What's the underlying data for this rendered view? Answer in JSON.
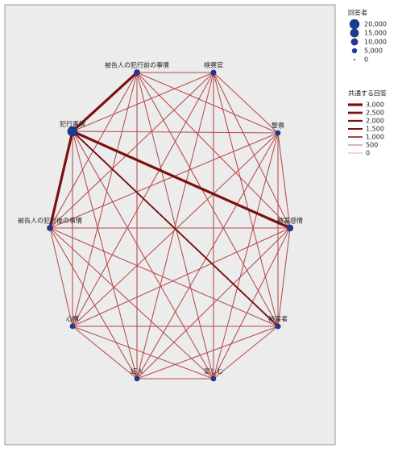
{
  "nodes": [
    {
      "label": "被告人の犯行前の事情",
      "value": 4000
    },
    {
      "label": "検察官",
      "value": 3000
    },
    {
      "label": "警察",
      "value": 2500
    },
    {
      "label": "被害感情",
      "value": 5000
    },
    {
      "label": "被害者",
      "value": 3000
    },
    {
      "label": "悲しむ",
      "value": 2500
    },
    {
      "label": "証人",
      "value": 2500
    },
    {
      "label": "心情",
      "value": 2500
    },
    {
      "label": "被告人の犯行後の事情",
      "value": 4000
    },
    {
      "label": "犯行事情",
      "value": 15000
    }
  ],
  "edges": [
    [
      0,
      1,
      500
    ],
    [
      0,
      2,
      500
    ],
    [
      0,
      3,
      500
    ],
    [
      0,
      4,
      500
    ],
    [
      0,
      5,
      500
    ],
    [
      0,
      6,
      500
    ],
    [
      0,
      7,
      500
    ],
    [
      0,
      8,
      500
    ],
    [
      0,
      9,
      3000
    ],
    [
      1,
      2,
      500
    ],
    [
      1,
      3,
      500
    ],
    [
      1,
      4,
      500
    ],
    [
      1,
      5,
      500
    ],
    [
      1,
      6,
      500
    ],
    [
      1,
      7,
      500
    ],
    [
      1,
      8,
      500
    ],
    [
      1,
      9,
      500
    ],
    [
      2,
      3,
      500
    ],
    [
      2,
      4,
      500
    ],
    [
      2,
      5,
      500
    ],
    [
      2,
      6,
      500
    ],
    [
      2,
      7,
      500
    ],
    [
      2,
      8,
      500
    ],
    [
      2,
      9,
      500
    ],
    [
      3,
      4,
      500
    ],
    [
      3,
      5,
      500
    ],
    [
      3,
      6,
      500
    ],
    [
      3,
      7,
      500
    ],
    [
      3,
      8,
      500
    ],
    [
      3,
      9,
      3000
    ],
    [
      4,
      5,
      500
    ],
    [
      4,
      6,
      500
    ],
    [
      4,
      7,
      500
    ],
    [
      4,
      8,
      500
    ],
    [
      4,
      9,
      1500
    ],
    [
      5,
      6,
      500
    ],
    [
      5,
      7,
      500
    ],
    [
      5,
      8,
      500
    ],
    [
      5,
      9,
      500
    ],
    [
      6,
      7,
      500
    ],
    [
      6,
      8,
      500
    ],
    [
      6,
      9,
      500
    ],
    [
      7,
      8,
      500
    ],
    [
      7,
      9,
      500
    ],
    [
      8,
      9,
      3000
    ]
  ],
  "size_legend": {
    "title": "回答者",
    "items": [
      {
        "value": 20000,
        "label": "20,000"
      },
      {
        "value": 15000,
        "label": "15,000"
      },
      {
        "value": 10000,
        "label": "10,000"
      },
      {
        "value": 5000,
        "label": "5,000"
      },
      0
    ]
  },
  "edge_legend": {
    "title": "共通する回答",
    "items": [
      {
        "value": 3000,
        "label": "3,000"
      },
      {
        "value": 2500,
        "label": "2,500"
      },
      {
        "value": 2000,
        "label": "2,000"
      },
      {
        "value": 1500,
        "label": "1,500"
      },
      {
        "value": 1000,
        "label": "1,000"
      },
      500,
      0
    ]
  }
}
